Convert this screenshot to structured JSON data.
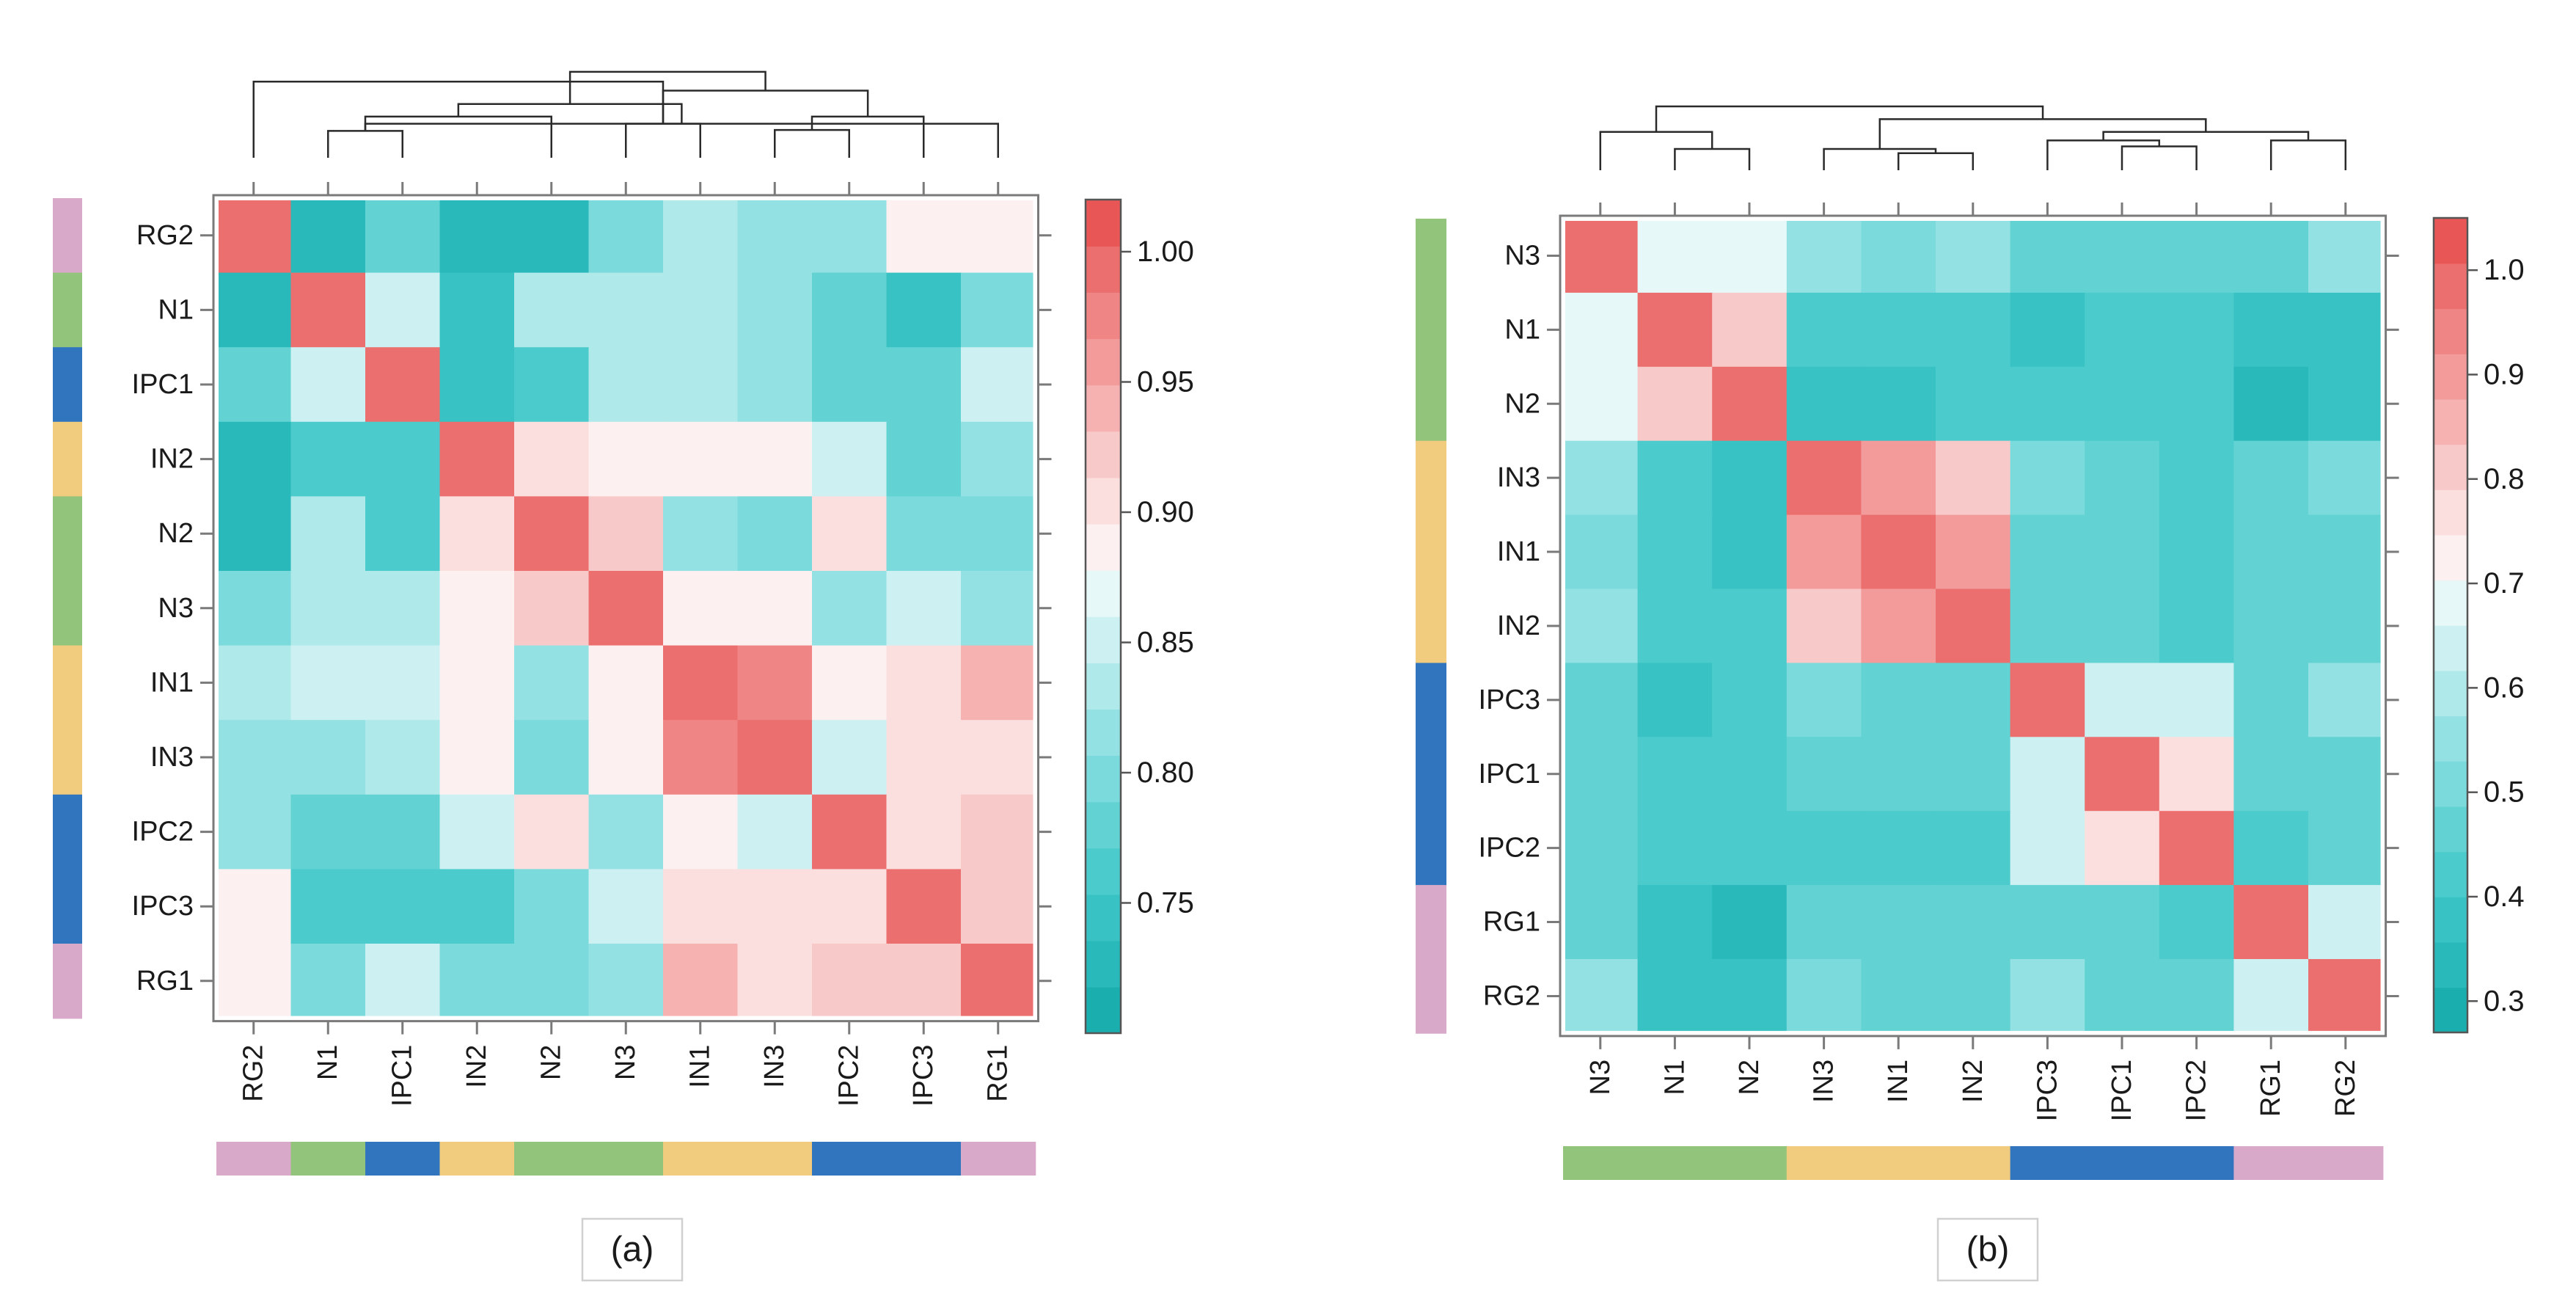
{
  "colors": {
    "colormap": [
      "#1aaeaf",
      "#2ab9ba",
      "#39c2c3",
      "#4ccbcc",
      "#62d2d3",
      "#7bdadb",
      "#93e1e2",
      "#b0e9ea",
      "#cdf1f2",
      "#e6f8f8",
      "#fcf0f1",
      "#fbdfdf",
      "#f8c9c9",
      "#f6b1b1",
      "#f39b9b",
      "#f08585",
      "#ec6f6f",
      "#e85656"
    ],
    "groups": {
      "RG": "#d9a9c9",
      "N": "#92c47b",
      "IPC": "#3275bf",
      "IN": "#f1cc7e"
    }
  },
  "chart_data": [
    {
      "type": "heatmap",
      "panel_label": "(a)",
      "labels": [
        "RG2",
        "N1",
        "IPC1",
        "IN2",
        "N2",
        "N3",
        "IN1",
        "IN3",
        "IPC2",
        "IPC3",
        "RG1"
      ],
      "row_groups": [
        "RG",
        "N",
        "IPC",
        "IN",
        "N",
        "N",
        "IN",
        "IN",
        "IPC",
        "IPC",
        "RG"
      ],
      "col_groups": [
        "RG",
        "N",
        "IPC",
        "IN",
        "N",
        "N",
        "IN",
        "IN",
        "IPC",
        "IPC",
        "RG"
      ],
      "values": [
        [
          1.0,
          0.73,
          0.78,
          0.73,
          0.73,
          0.79,
          0.83,
          0.81,
          0.81,
          0.88,
          0.88
        ],
        [
          0.73,
          1.0,
          0.85,
          0.75,
          0.83,
          0.83,
          0.84,
          0.81,
          0.78,
          0.75,
          0.79
        ],
        [
          0.78,
          0.85,
          1.0,
          0.75,
          0.77,
          0.83,
          0.84,
          0.82,
          0.78,
          0.78,
          0.85
        ],
        [
          0.73,
          0.76,
          0.76,
          1.0,
          0.9,
          0.88,
          0.88,
          0.88,
          0.85,
          0.78,
          0.81
        ],
        [
          0.73,
          0.83,
          0.77,
          0.9,
          1.0,
          0.92,
          0.81,
          0.79,
          0.9,
          0.8,
          0.8
        ],
        [
          0.79,
          0.83,
          0.83,
          0.88,
          0.92,
          1.0,
          0.88,
          0.88,
          0.82,
          0.85,
          0.82
        ],
        [
          0.83,
          0.85,
          0.85,
          0.88,
          0.81,
          0.88,
          1.0,
          0.98,
          0.88,
          0.91,
          0.94
        ],
        [
          0.81,
          0.81,
          0.83,
          0.88,
          0.79,
          0.88,
          0.98,
          1.0,
          0.85,
          0.91,
          0.91
        ],
        [
          0.81,
          0.78,
          0.78,
          0.85,
          0.9,
          0.82,
          0.88,
          0.85,
          1.0,
          0.91,
          0.92
        ],
        [
          0.88,
          0.76,
          0.77,
          0.77,
          0.8,
          0.85,
          0.91,
          0.91,
          0.91,
          1.0,
          0.92
        ],
        [
          0.88,
          0.79,
          0.85,
          0.8,
          0.8,
          0.82,
          0.94,
          0.91,
          0.92,
          0.92,
          1.0
        ]
      ],
      "colorbar": {
        "min": 0.7,
        "max": 1.02,
        "ticks": [
          0.75,
          0.8,
          0.85,
          0.9,
          0.95,
          1.0
        ],
        "tick_labels": [
          "0.75",
          "0.80",
          "0.85",
          "0.90",
          "0.95",
          "1.00"
        ]
      },
      "dendrogram": [
        [
          1,
          2,
          0.3
        ],
        [
          5,
          6,
          0.38
        ],
        [
          4,
          11,
          0.46
        ],
        [
          7,
          8,
          0.31
        ],
        [
          10,
          11,
          0.38
        ],
        [
          9,
          14,
          0.46
        ],
        [
          13,
          15,
          0.6
        ],
        [
          12,
          16,
          0.75
        ],
        [
          0,
          12,
          0.85
        ],
        [
          17,
          18,
          0.96
        ]
      ]
    },
    {
      "type": "heatmap",
      "panel_label": "(b)",
      "labels": [
        "N3",
        "N1",
        "N2",
        "IN3",
        "IN1",
        "IN2",
        "IPC3",
        "IPC1",
        "IPC2",
        "RG1",
        "RG2"
      ],
      "row_groups": [
        "N",
        "N",
        "N",
        "IN",
        "IN",
        "IN",
        "IPC",
        "IPC",
        "IPC",
        "RG",
        "RG"
      ],
      "col_groups": [
        "N",
        "N",
        "N",
        "IN",
        "IN",
        "IN",
        "IPC",
        "IPC",
        "IPC",
        "RG",
        "RG"
      ],
      "values": [
        [
          1.0,
          0.7,
          0.7,
          0.55,
          0.5,
          0.55,
          0.48,
          0.48,
          0.45,
          0.45,
          0.55
        ],
        [
          0.7,
          1.0,
          0.8,
          0.4,
          0.4,
          0.4,
          0.37,
          0.4,
          0.4,
          0.38,
          0.38
        ],
        [
          0.7,
          0.8,
          1.0,
          0.38,
          0.38,
          0.4,
          0.4,
          0.4,
          0.4,
          0.33,
          0.38
        ],
        [
          0.55,
          0.4,
          0.38,
          1.0,
          0.88,
          0.82,
          0.5,
          0.45,
          0.4,
          0.45,
          0.5
        ],
        [
          0.5,
          0.4,
          0.38,
          0.88,
          1.0,
          0.88,
          0.45,
          0.45,
          0.4,
          0.45,
          0.45
        ],
        [
          0.55,
          0.4,
          0.4,
          0.82,
          0.88,
          1.0,
          0.45,
          0.45,
          0.4,
          0.45,
          0.45
        ],
        [
          0.48,
          0.37,
          0.4,
          0.5,
          0.45,
          0.45,
          1.0,
          0.62,
          0.62,
          0.48,
          0.55
        ],
        [
          0.48,
          0.4,
          0.4,
          0.45,
          0.45,
          0.45,
          0.62,
          1.0,
          0.75,
          0.48,
          0.45
        ],
        [
          0.45,
          0.4,
          0.4,
          0.4,
          0.4,
          0.4,
          0.62,
          0.75,
          1.0,
          0.4,
          0.45
        ],
        [
          0.45,
          0.38,
          0.33,
          0.45,
          0.45,
          0.45,
          0.48,
          0.48,
          0.4,
          1.0,
          0.62
        ],
        [
          0.55,
          0.38,
          0.38,
          0.5,
          0.45,
          0.45,
          0.55,
          0.45,
          0.45,
          0.62,
          1.0
        ]
      ],
      "colorbar": {
        "min": 0.27,
        "max": 1.05,
        "ticks": [
          0.3,
          0.4,
          0.5,
          0.6,
          0.7,
          0.8,
          0.9,
          1.0
        ],
        "tick_labels": [
          "0.3",
          "0.4",
          "0.5",
          "0.6",
          "0.7",
          "0.8",
          "0.9",
          "1.0"
        ]
      },
      "dendrogram": [
        [
          1,
          2,
          0.25
        ],
        [
          0,
          11,
          0.45
        ],
        [
          4,
          5,
          0.2
        ],
        [
          3,
          13,
          0.25
        ],
        [
          7,
          8,
          0.28
        ],
        [
          6,
          15,
          0.35
        ],
        [
          9,
          10,
          0.35
        ],
        [
          16,
          17,
          0.45
        ],
        [
          14,
          18,
          0.6
        ],
        [
          12,
          19,
          0.75
        ]
      ]
    }
  ]
}
